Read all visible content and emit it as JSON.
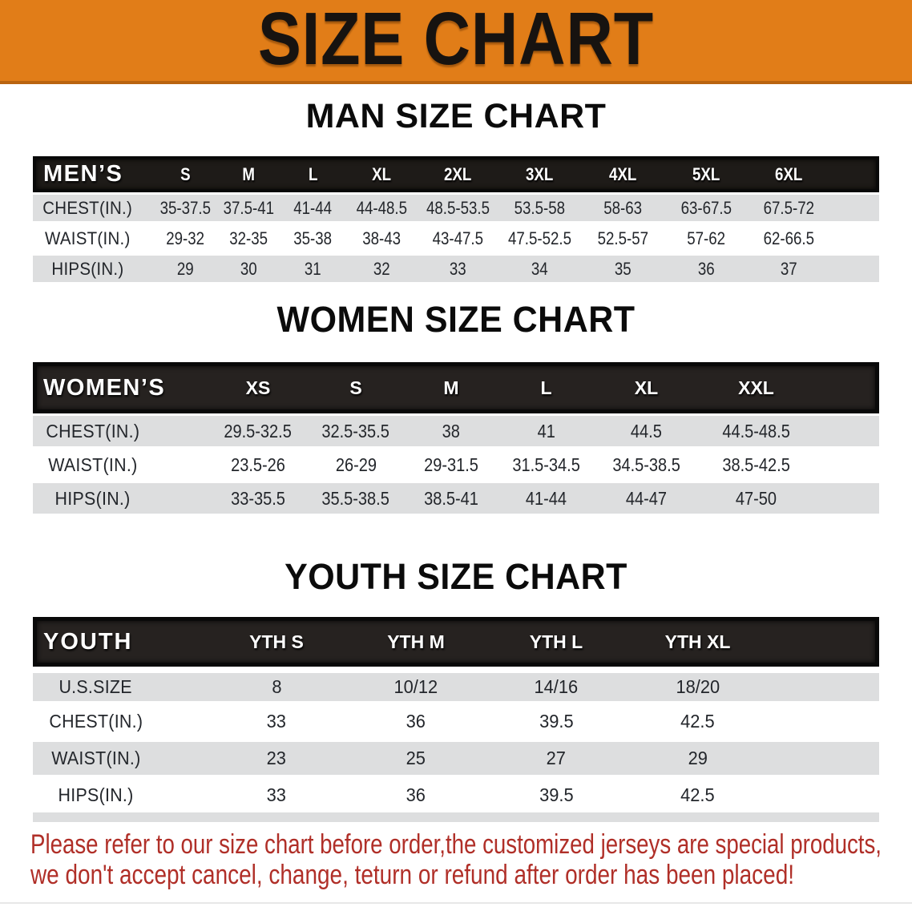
{
  "banner": {
    "title": "SIZE CHART",
    "background_color": "#E17D18",
    "title_color": "#171310"
  },
  "sections": [
    {
      "heading": "MAN SIZE CHART"
    },
    {
      "heading": "WOMEN SIZE CHART"
    },
    {
      "heading": "YOUTH SIZE CHART"
    }
  ],
  "notice": {
    "line1": "Please refer to our size chart before order,the customized jerseys are special products,",
    "line2": "we don't accept cancel, change, teturn or refund after order has been placed!",
    "color": "#B02F28"
  },
  "colors": {
    "shaded_row": "#DDDEDF",
    "table_header_bg": "#090909",
    "table_header_text": "#ffffff"
  },
  "chart_data": [
    {
      "type": "table",
      "title": "MAN SIZE CHART",
      "corner_label": "MEN’S",
      "columns": [
        "S",
        "M",
        "L",
        "XL",
        "2XL",
        "3XL",
        "4XL",
        "5XL",
        "6XL"
      ],
      "rows": [
        {
          "label": "CHEST(IN.)",
          "values": [
            "35-37.5",
            "37.5-41",
            "41-44",
            "44-48.5",
            "48.5-53.5",
            "53.5-58",
            "58-63",
            "63-67.5",
            "67.5-72"
          ]
        },
        {
          "label": "WAIST(IN.)",
          "values": [
            "29-32",
            "32-35",
            "35-38",
            "38-43",
            "43-47.5",
            "47.5-52.5",
            "52.5-57",
            "57-62",
            "62-66.5"
          ]
        },
        {
          "label": "HIPS(IN.)",
          "values": [
            "29",
            "30",
            "31",
            "32",
            "33",
            "34",
            "35",
            "36",
            "37"
          ]
        }
      ]
    },
    {
      "type": "table",
      "title": "WOMEN SIZE CHART",
      "corner_label": "WOMEN’S",
      "columns": [
        "XS",
        "S",
        "M",
        "L",
        "XL",
        "XXL"
      ],
      "rows": [
        {
          "label": "CHEST(IN.)",
          "values": [
            "29.5-32.5",
            "32.5-35.5",
            "38",
            "41",
            "44.5",
            "44.5-48.5"
          ]
        },
        {
          "label": "WAIST(IN.)",
          "values": [
            "23.5-26",
            "26-29",
            "29-31.5",
            "31.5-34.5",
            "34.5-38.5",
            "38.5-42.5"
          ]
        },
        {
          "label": "HIPS(IN.)",
          "values": [
            "33-35.5",
            "35.5-38.5",
            "38.5-41",
            "41-44",
            "44-47",
            "47-50"
          ]
        }
      ]
    },
    {
      "type": "table",
      "title": "YOUTH SIZE CHART",
      "corner_label": "YOUTH",
      "columns": [
        "YTH S",
        "YTH M",
        "YTH L",
        "YTH XL"
      ],
      "rows": [
        {
          "label": "U.S.SIZE",
          "values": [
            "8",
            "10/12",
            "14/16",
            "18/20"
          ]
        },
        {
          "label": "CHEST(IN.)",
          "values": [
            "33",
            "36",
            "39.5",
            "42.5"
          ]
        },
        {
          "label": "WAIST(IN.)",
          "values": [
            "23",
            "25",
            "27",
            "29"
          ]
        },
        {
          "label": "HIPS(IN.)",
          "values": [
            "33",
            "36",
            "39.5",
            "42.5"
          ]
        }
      ]
    }
  ]
}
